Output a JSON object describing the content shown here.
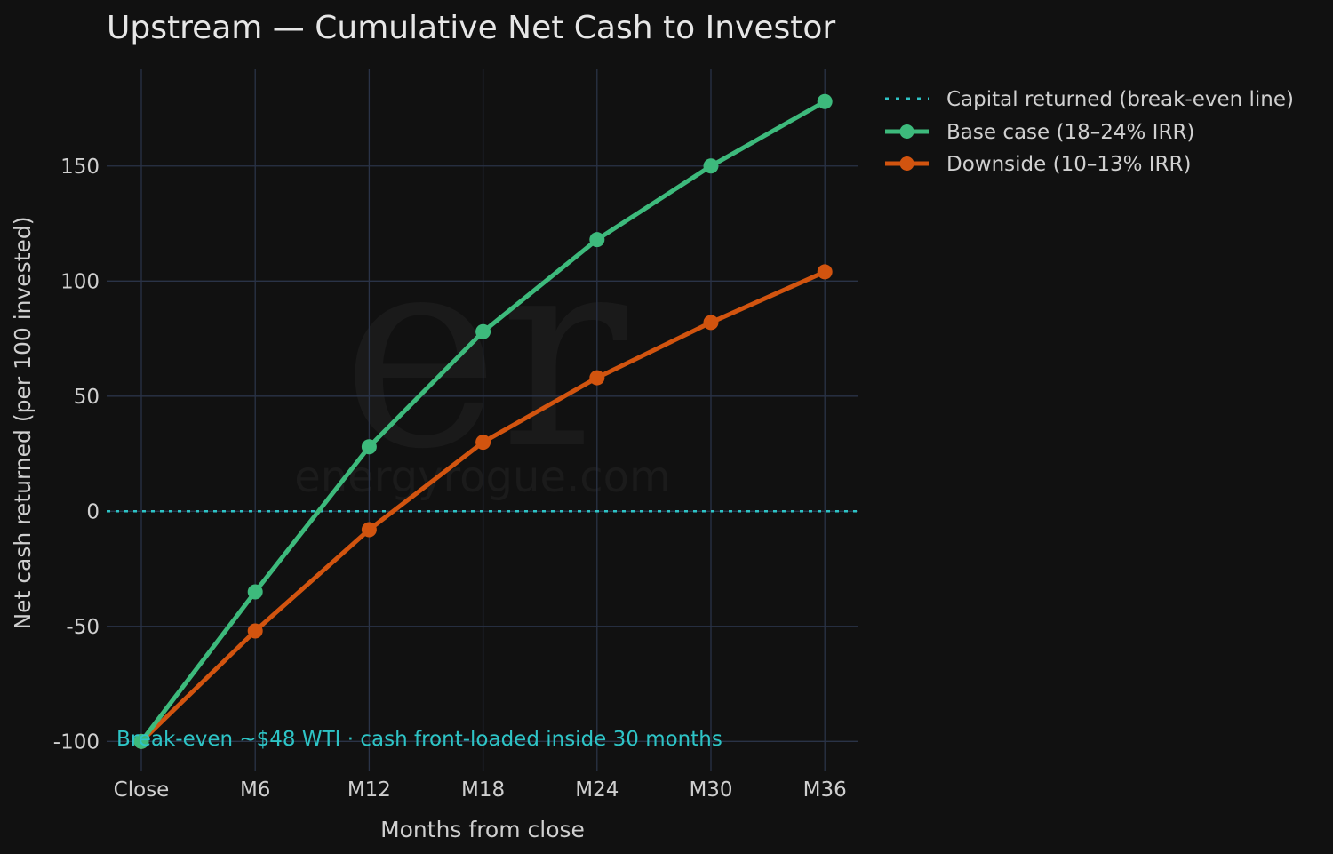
{
  "chart_data": {
    "type": "line",
    "title": "Upstream — Cumulative Net Cash to Investor",
    "xlabel": "Months from close",
    "ylabel": "Net cash returned (per 100 invested)",
    "categories": [
      "Close",
      "M6",
      "M12",
      "M18",
      "M24",
      "M30",
      "M36"
    ],
    "ylim": [
      -113,
      192
    ],
    "yticks": [
      -100,
      -50,
      0,
      50,
      100,
      150
    ],
    "grid": true,
    "legend_position": "outside-top-right",
    "reference_line": {
      "name": "Capital returned (break-even line)",
      "y": 0,
      "color": "#2ec4c6",
      "style": "dotted"
    },
    "series": [
      {
        "name": "Base case (18–24% IRR)",
        "color": "#3dba7c",
        "values": [
          -100,
          -35,
          28,
          78,
          118,
          150,
          178
        ]
      },
      {
        "name": "Downside (10–13% IRR)",
        "color": "#d2540f",
        "values": [
          -100,
          -52,
          -8,
          30,
          58,
          82,
          104
        ]
      }
    ],
    "annotation": "Break-even ~$48 WTI  ·  cash front-loaded inside 30 months",
    "watermark": {
      "mark": "er",
      "text": "energyrogue.com"
    }
  }
}
